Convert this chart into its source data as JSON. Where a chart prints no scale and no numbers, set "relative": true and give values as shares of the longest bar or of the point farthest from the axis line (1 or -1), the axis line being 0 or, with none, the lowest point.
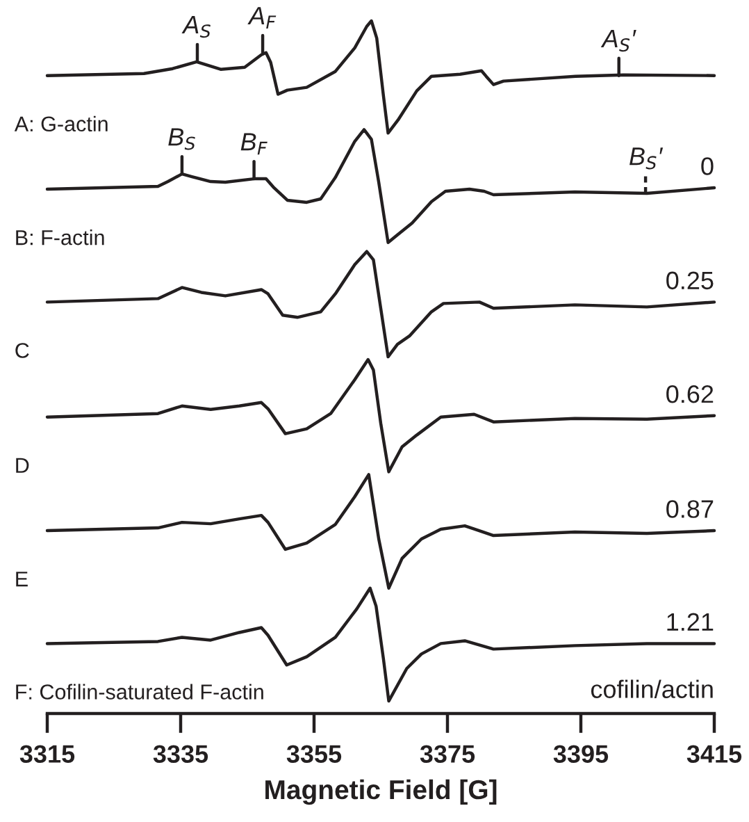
{
  "chart_data": {
    "type": "line",
    "relative": true,
    "xlabel": "Magnetic Field [G]",
    "xlim": [
      3315,
      3415
    ],
    "xticks": [
      3315,
      3335,
      3355,
      3375,
      3395,
      3415
    ],
    "series": [
      {
        "name": "A: G-actin",
        "color": "#231f20",
        "x": [
          3315,
          3329.5,
          3333.8,
          3337.4,
          3341.0,
          3344.6,
          3347.1,
          3347.8,
          3348.5,
          3349.6,
          3351.0,
          3353.9,
          3358.2,
          3361.1,
          3362.9,
          3363.6,
          3364.4,
          3365.4,
          3366.1,
          3367.6,
          3370.4,
          3372.6,
          3376.9,
          3380.1,
          3380.8,
          3381.9,
          3383.4,
          3394.2,
          3401.4,
          3415
        ],
        "values": [
          0.921,
          0.924,
          0.931,
          0.941,
          0.93,
          0.933,
          0.951,
          0.954,
          0.94,
          0.894,
          0.9,
          0.904,
          0.927,
          0.961,
          0.992,
          1.0,
          0.975,
          0.892,
          0.838,
          0.857,
          0.899,
          0.92,
          0.923,
          0.928,
          0.92,
          0.908,
          0.913,
          0.92,
          0.922,
          0.921
        ]
      },
      {
        "name": "B: F-actin",
        "color": "#231f20",
        "x": [
          3315,
          3331.6,
          3333.1,
          3335.2,
          3336.7,
          3339.5,
          3341.7,
          3346.0,
          3347.8,
          3348.9,
          3351.0,
          3353.9,
          3356.0,
          3358.2,
          3361.1,
          3362.5,
          3363.6,
          3364.7,
          3366.1,
          3367.5,
          3369.7,
          3372.6,
          3374.7,
          3378.3,
          3380.5,
          3381.9,
          3394.1,
          3404.9,
          3415
        ],
        "values": [
          0.757,
          0.761,
          0.768,
          0.779,
          0.775,
          0.768,
          0.767,
          0.772,
          0.772,
          0.76,
          0.741,
          0.738,
          0.743,
          0.774,
          0.826,
          0.843,
          0.829,
          0.767,
          0.68,
          0.691,
          0.708,
          0.739,
          0.754,
          0.757,
          0.754,
          0.749,
          0.753,
          0.751,
          0.759
        ]
      },
      {
        "name": "C",
        "color": "#231f20",
        "x": [
          3315,
          3331.6,
          3335.2,
          3338.1,
          3341.7,
          3347.1,
          3348.1,
          3350.3,
          3352.5,
          3356.0,
          3358.2,
          3361.1,
          3362.9,
          3363.9,
          3365.0,
          3366.1,
          3367.5,
          3369.3,
          3372.6,
          3374.4,
          3379.8,
          3381.9,
          3394.1,
          3404.9,
          3415
        ],
        "values": [
          0.594,
          0.599,
          0.615,
          0.608,
          0.603,
          0.612,
          0.606,
          0.575,
          0.572,
          0.58,
          0.606,
          0.648,
          0.667,
          0.655,
          0.585,
          0.515,
          0.533,
          0.545,
          0.58,
          0.592,
          0.594,
          0.585,
          0.59,
          0.587,
          0.594
        ]
      },
      {
        "name": "D",
        "color": "#231f20",
        "x": [
          3315,
          3331.6,
          3335.2,
          3339.5,
          3343.8,
          3347.1,
          3348.1,
          3350.7,
          3353.9,
          3357.5,
          3361.1,
          3363.1,
          3363.9,
          3365.0,
          3366.2,
          3368.2,
          3370.4,
          3374.0,
          3379.0,
          3381.9,
          3394.1,
          3404.9,
          3415
        ],
        "values": [
          0.428,
          0.433,
          0.444,
          0.439,
          0.444,
          0.449,
          0.44,
          0.404,
          0.411,
          0.433,
          0.482,
          0.511,
          0.496,
          0.419,
          0.349,
          0.385,
          0.402,
          0.428,
          0.432,
          0.421,
          0.426,
          0.425,
          0.43
        ]
      },
      {
        "name": "E",
        "color": "#231f20",
        "x": [
          3315,
          3331.6,
          3335.2,
          3339.5,
          3343.8,
          3347.1,
          3348.1,
          3350.7,
          3353.9,
          3358.2,
          3361.1,
          3363.2,
          3364.7,
          3366.2,
          3368.2,
          3371.1,
          3374.0,
          3377.6,
          3381.9,
          3394.1,
          3404.9,
          3415
        ],
        "values": [
          0.264,
          0.268,
          0.276,
          0.274,
          0.281,
          0.286,
          0.276,
          0.237,
          0.246,
          0.273,
          0.313,
          0.345,
          0.252,
          0.181,
          0.224,
          0.252,
          0.266,
          0.271,
          0.257,
          0.262,
          0.26,
          0.264
        ]
      },
      {
        "name": "F: Cofilin-saturated F-actin",
        "color": "#231f20",
        "x": [
          3315,
          3331.6,
          3335.2,
          3339.5,
          3343.8,
          3347.1,
          3348.1,
          3350.9,
          3353.9,
          3358.2,
          3361.4,
          3363.4,
          3364.3,
          3365.4,
          3366.2,
          3368.9,
          3371.1,
          3374.0,
          3377.6,
          3381.9,
          3394.1,
          3404.9,
          3415
        ],
        "values": [
          0.101,
          0.104,
          0.11,
          0.106,
          0.117,
          0.124,
          0.113,
          0.07,
          0.082,
          0.11,
          0.151,
          0.181,
          0.155,
          0.079,
          0.018,
          0.065,
          0.086,
          0.101,
          0.105,
          0.093,
          0.098,
          0.101,
          0.101
        ]
      }
    ],
    "annotations": [
      {
        "text": "A$_{S}$",
        "x": 3337.5,
        "y": 0.941
      },
      {
        "text": "A$_{F}$",
        "x": 3347.3,
        "y": 0.954
      },
      {
        "text": "A$_{S}$′",
        "x": 3400.7,
        "y": 0.921
      },
      {
        "text": "B$_{S}$",
        "x": 3335.2,
        "y": 0.779
      },
      {
        "text": "B$_{F}$",
        "x": 3346.0,
        "y": 0.772
      },
      {
        "text": "B$_{S}$′",
        "x": 3404.7,
        "y": 0.751
      },
      {
        "text": "0",
        "x": 3415,
        "y": 0.759
      },
      {
        "text": "0.25",
        "x": 3415,
        "y": 0.594
      },
      {
        "text": "0.62",
        "x": 3415,
        "y": 0.43
      },
      {
        "text": "0.87",
        "x": 3415,
        "y": 0.264
      },
      {
        "text": "1.21",
        "x": 3415,
        "y": 0.101
      },
      "cofilin/actin"
    ]
  }
}
